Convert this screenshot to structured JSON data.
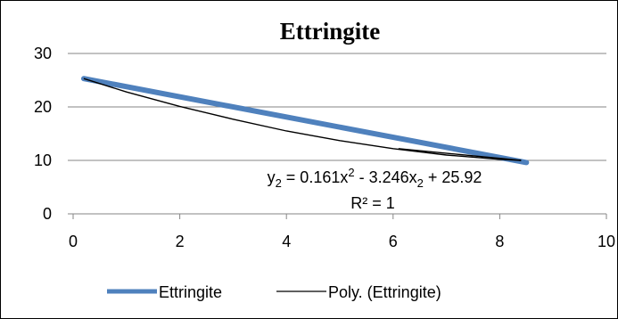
{
  "chart_data": {
    "type": "line",
    "title": "Ettringite",
    "xlabel": "",
    "ylabel": "",
    "xlim": [
      0,
      10
    ],
    "ylim": [
      0,
      30
    ],
    "x_ticks": [
      0,
      2,
      4,
      6,
      8,
      10
    ],
    "y_ticks": [
      0,
      10,
      20,
      30
    ],
    "grid": "horizontal",
    "legend_position": "bottom",
    "series": [
      {
        "name": "Ettringite",
        "color": "#4F81BD",
        "x": [
          0.2,
          8.5
        ],
        "y": [
          25.3,
          9.6
        ]
      },
      {
        "name": "Poly. (Ettringite)",
        "color": "#000000",
        "type": "polynomial-trendline",
        "x": [
          0.2,
          1,
          2,
          3,
          4,
          5,
          6,
          7,
          8,
          8.4
        ],
        "y": [
          25.3,
          22.8,
          20.1,
          17.7,
          15.5,
          13.7,
          12.2,
          11.0,
          10.2,
          10.0
        ],
        "segment2": {
          "x": [
            6.1,
            8.4
          ],
          "y": [
            12.2,
            10.0
          ]
        }
      }
    ],
    "annotations": {
      "equation": {
        "lhs_var": "y",
        "sub": "2",
        "eq": " = 0.161x",
        "sq": "2",
        "mid": " - 3.246x",
        "tail": " + 25.92"
      },
      "r2": "R² = 1"
    }
  }
}
